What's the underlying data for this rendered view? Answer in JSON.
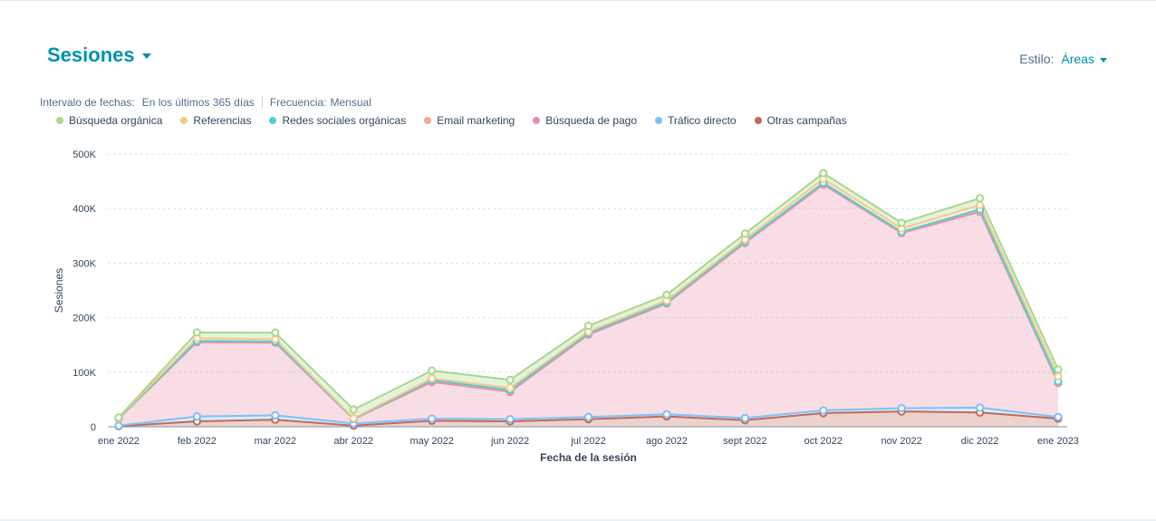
{
  "header": {
    "title": "Sesiones",
    "style_label": "Estilo:",
    "style_value": "Áreas"
  },
  "filters": {
    "range_label": "Intervalo de fechas:",
    "range_value": "En los últimos 365 días",
    "freq_label": "Frecuencia:",
    "freq_value": "Mensual"
  },
  "chart_data": {
    "type": "area",
    "stacked": true,
    "xlabel": "Fecha de la sesión",
    "ylabel": "Sesiones",
    "ylim": [
      0,
      500000
    ],
    "yticks": [
      0,
      100000,
      200000,
      300000,
      400000,
      500000
    ],
    "ytick_labels": [
      "0",
      "100K",
      "200K",
      "300K",
      "400K",
      "500K"
    ],
    "grid": true,
    "legend_position": "top-left",
    "categories": [
      "ene 2022",
      "feb 2022",
      "mar 2022",
      "abr 2022",
      "may 2022",
      "jun 2022",
      "jul 2022",
      "ago 2022",
      "sept 2022",
      "oct 2022",
      "nov 2022",
      "dic 2022",
      "ene 2023"
    ],
    "series": [
      {
        "name": "Otras campañas",
        "color": "#c06a5a",
        "values": [
          1000,
          10000,
          13000,
          2000,
          11000,
          10000,
          14000,
          19000,
          12000,
          25000,
          28000,
          26000,
          15000
        ]
      },
      {
        "name": "Tráfico directo",
        "color": "#7fc0f5",
        "values": [
          1000,
          9000,
          8000,
          4000,
          4000,
          4000,
          4000,
          4000,
          4000,
          5000,
          6000,
          9000,
          3000
        ]
      },
      {
        "name": "Búsqueda de pago",
        "color": "#e98ea8",
        "values": [
          13000,
          136000,
          133000,
          8000,
          67000,
          50000,
          151000,
          203000,
          321000,
          414000,
          321000,
          359000,
          62000
        ]
      },
      {
        "name": "Email marketing",
        "color": "#f2a98c",
        "values": [
          500,
          2000,
          2000,
          500,
          3000,
          3000,
          2000,
          2000,
          2000,
          3000,
          2000,
          4000,
          3000
        ]
      },
      {
        "name": "Redes sociales orgánicas",
        "color": "#4fcfd4",
        "values": [
          200,
          500,
          500,
          200,
          500,
          500,
          500,
          500,
          500,
          500,
          500,
          500,
          500
        ]
      },
      {
        "name": "Referencias",
        "color": "#f5c98a",
        "values": [
          500,
          5000,
          4000,
          1000,
          3000,
          4000,
          3000,
          3000,
          4000,
          7000,
          6000,
          8000,
          9000
        ]
      },
      {
        "name": "Búsqueda orgánica",
        "color": "#a7d88c",
        "values": [
          800,
          10500,
          12000,
          15800,
          14500,
          14500,
          10500,
          10500,
          10500,
          10500,
          10500,
          12500,
          12500
        ]
      }
    ],
    "legend_order": [
      "Búsqueda orgánica",
      "Referencias",
      "Redes sociales orgánicas",
      "Email marketing",
      "Búsqueda de pago",
      "Tráfico directo",
      "Otras campañas"
    ]
  }
}
